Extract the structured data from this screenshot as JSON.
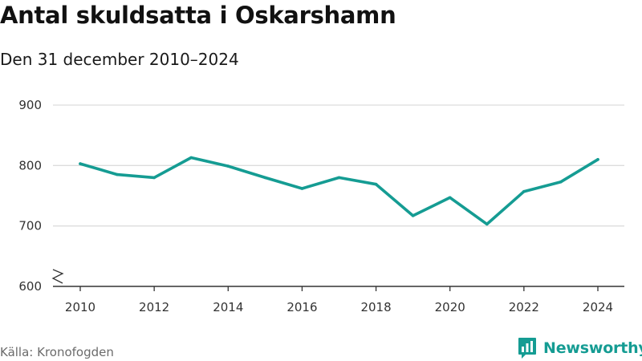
{
  "header": {
    "title": "Antal skuldsatta i Oskarshamn",
    "subtitle": "Den 31 december 2010–2024"
  },
  "footer": {
    "source": "Källa: Kronofogden",
    "brand": "Newsworthy",
    "brand_logo_icon": "bar-chart-speech-bubble-icon"
  },
  "colors": {
    "line": "#159c93",
    "grid": "#dddddd",
    "axis": "#333333",
    "brand": "#159c93"
  },
  "chart_data": {
    "type": "line",
    "title": "Antal skuldsatta i Oskarshamn",
    "subtitle": "Den 31 december 2010–2024",
    "xlabel": "",
    "ylabel": "",
    "ylim": [
      600,
      900
    ],
    "y_ticks": [
      600,
      700,
      800,
      900
    ],
    "y_axis_break": true,
    "x_ticks": [
      2010,
      2012,
      2014,
      2016,
      2018,
      2020,
      2022,
      2024
    ],
    "xlim": [
      2010,
      2024
    ],
    "grid": "horizontal",
    "legend": "none",
    "series": [
      {
        "x": [
          2010,
          2011,
          2012,
          2013,
          2014,
          2015,
          2016,
          2017,
          2018,
          2019,
          2020,
          2021,
          2022,
          2023,
          2024
        ],
        "values": [
          803,
          785,
          780,
          813,
          799,
          780,
          762,
          780,
          769,
          717,
          747,
          703,
          757,
          773,
          810
        ]
      }
    ]
  }
}
